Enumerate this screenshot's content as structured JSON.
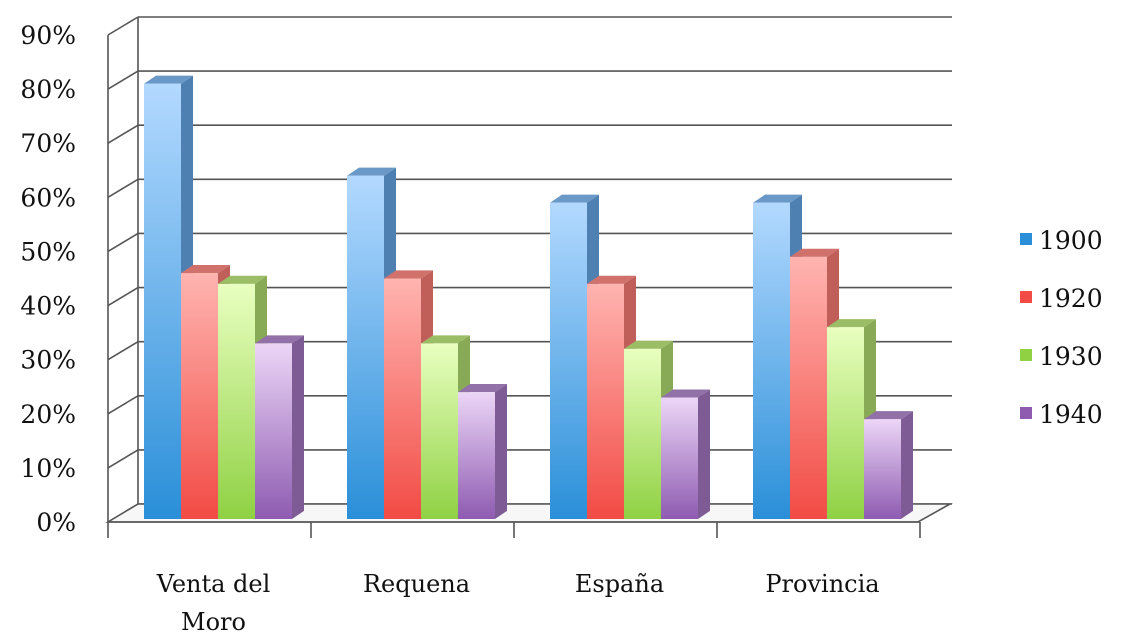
{
  "chart_data": {
    "type": "bar",
    "categories": [
      [
        "Venta del",
        "Moro"
      ],
      [
        "Requena"
      ],
      [
        "España"
      ],
      [
        "Provincia"
      ]
    ],
    "series": [
      {
        "name": "1900",
        "values": [
          81,
          64,
          59,
          59
        ]
      },
      {
        "name": "1920",
        "values": [
          46,
          45,
          44,
          49
        ]
      },
      {
        "name": "1930",
        "values": [
          44,
          33,
          32,
          36
        ]
      },
      {
        "name": "1940",
        "values": [
          33,
          24,
          23,
          19
        ]
      }
    ],
    "y_ticks": [
      "0%",
      "10%",
      "20%",
      "30%",
      "40%",
      "50%",
      "60%",
      "70%",
      "80%",
      "90%"
    ],
    "ylim": [
      0,
      90
    ],
    "unit": "%",
    "title": "",
    "xlabel": "",
    "ylabel": "",
    "grid": true,
    "legend_position": "right",
    "three_d": true,
    "colors": {
      "1900": {
        "light": "#b3d9ff",
        "dark": "#2a8fd8",
        "side": "#4f80b2",
        "top": "#6a99c8"
      },
      "1920": {
        "light": "#ffb4b0",
        "dark": "#f24b45",
        "side": "#c05f5a",
        "top": "#d0716c"
      },
      "1930": {
        "light": "#e9ffc0",
        "dark": "#8fd143",
        "side": "#88aa56",
        "top": "#9bbd66"
      },
      "1940": {
        "light": "#ecd6f7",
        "dark": "#8e5bb1",
        "side": "#7e5b95",
        "top": "#9270a8"
      }
    }
  }
}
